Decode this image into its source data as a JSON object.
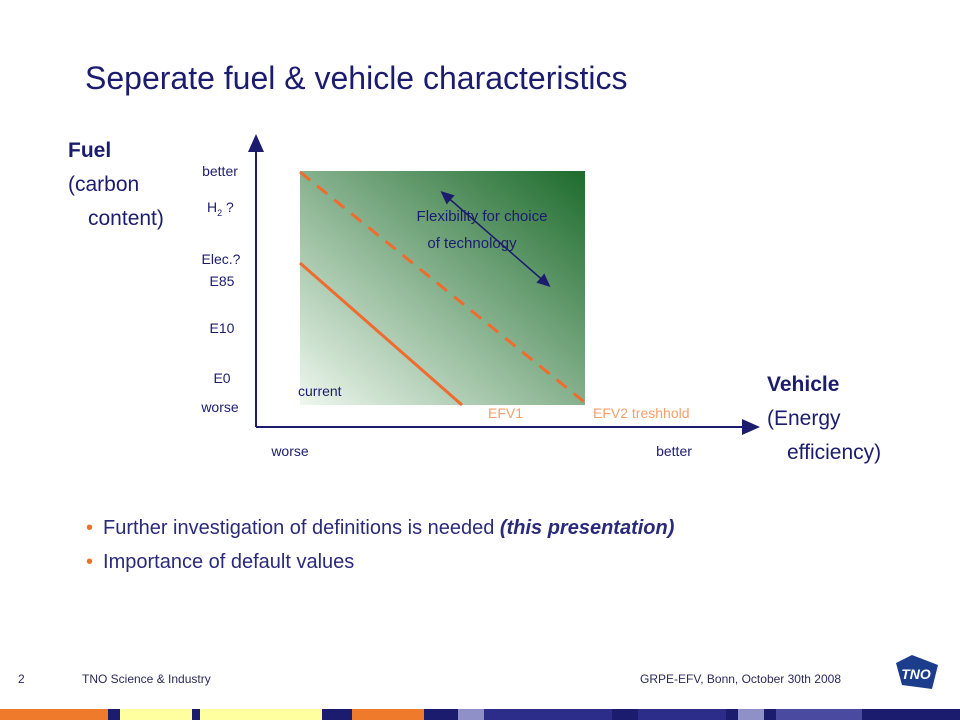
{
  "title": "Seperate fuel & vehicle characteristics",
  "y_axis": {
    "title_bold": "Fuel",
    "title_line2": "(carbon",
    "title_line3": "content)",
    "top_label": "better",
    "bottom_label": "worse",
    "fuel_labels": [
      "H2?",
      "Elec.?",
      "E85",
      "E10",
      "E0"
    ]
  },
  "x_axis": {
    "title_bold": "Vehicle",
    "title_line2": "(Energy",
    "title_line3": "efficiency)",
    "left_label": "worse",
    "right_label": "better"
  },
  "diagram": {
    "flex_line1": "Flexibility for choice",
    "flex_line2": "of technology",
    "current_label": "current",
    "efv1_label": "EFV1",
    "efv2_label": "EFV2 treshhold",
    "colors": {
      "gradient_light": "#eef7ee",
      "gradient_dark": "#1d6b2c",
      "line_orange": "#ef6b2e",
      "label_orange": "#f4a06a",
      "text_navy": "#1c1c6e"
    }
  },
  "bullets": [
    {
      "text": "Further investigation of definitions is needed ",
      "emphasis": "(this presentation)"
    },
    {
      "text": "Importance of default values",
      "emphasis": ""
    }
  ],
  "footer": {
    "page_number": "2",
    "org": "TNO Science & Industry",
    "event": "GRPE-EFV, Bonn, October 30th 2008",
    "logo_text": "TNO"
  }
}
